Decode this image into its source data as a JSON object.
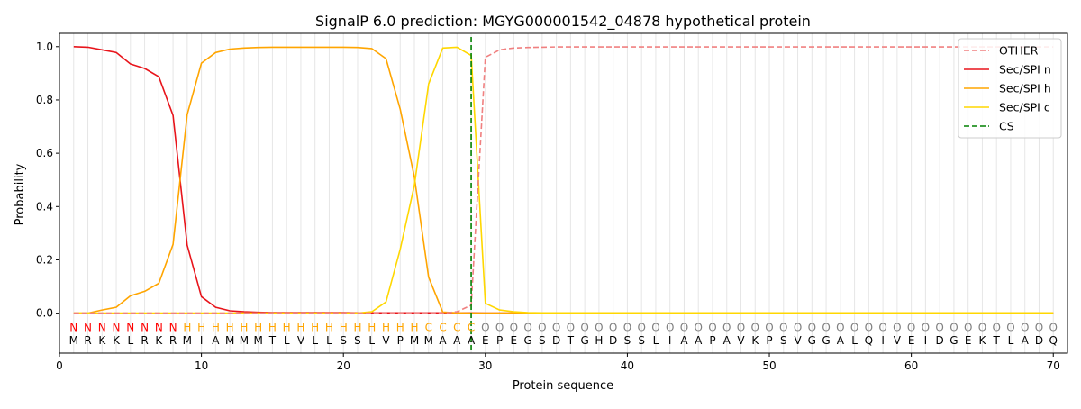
{
  "chart_data": {
    "type": "line",
    "title": "SignalP 6.0 prediction: MGYG000001542_04878 hypothetical protein",
    "xlabel": "Protein sequence",
    "ylabel": "Probability",
    "xlim": [
      0,
      71
    ],
    "ylim": [
      -0.15,
      1.05
    ],
    "x_ticks": [
      0,
      10,
      20,
      30,
      40,
      50,
      60,
      70
    ],
    "y_ticks": [
      0.0,
      0.2,
      0.4,
      0.6,
      0.8,
      1.0
    ],
    "x_tick_labels": [
      "0",
      "10",
      "20",
      "30",
      "40",
      "50",
      "60",
      "70"
    ],
    "y_tick_labels": [
      "0.0",
      "0.2",
      "0.4",
      "0.6",
      "0.8",
      "1.0"
    ],
    "grid": "vertical lines at every residue",
    "legend_position": "top-right",
    "sequence": [
      "M",
      "R",
      "K",
      "K",
      "L",
      "R",
      "K",
      "R",
      "M",
      "I",
      "A",
      "M",
      "M",
      "M",
      "T",
      "L",
      "V",
      "L",
      "L",
      "S",
      "S",
      "L",
      "V",
      "P",
      "M",
      "M",
      "A",
      "A",
      "A",
      "E",
      "P",
      "E",
      "G",
      "S",
      "D",
      "T",
      "G",
      "H",
      "D",
      "S",
      "S",
      "L",
      "I",
      "A",
      "A",
      "P",
      "A",
      "V",
      "K",
      "P",
      "S",
      "V",
      "G",
      "G",
      "A",
      "L",
      "Q",
      "I",
      "V",
      "E",
      "I",
      "D",
      "G",
      "E",
      "K",
      "T",
      "L",
      "A",
      "D",
      "Q"
    ],
    "labels": [
      "N",
      "N",
      "N",
      "N",
      "N",
      "N",
      "N",
      "N",
      "H",
      "H",
      "H",
      "H",
      "H",
      "H",
      "H",
      "H",
      "H",
      "H",
      "H",
      "H",
      "H",
      "H",
      "H",
      "H",
      "H",
      "C",
      "C",
      "C",
      "C",
      "O",
      "O",
      "O",
      "O",
      "O",
      "O",
      "O",
      "O",
      "O",
      "O",
      "O",
      "O",
      "O",
      "O",
      "O",
      "O",
      "O",
      "O",
      "O",
      "O",
      "O",
      "O",
      "O",
      "O",
      "O",
      "O",
      "O",
      "O",
      "O",
      "O",
      "O",
      "O",
      "O",
      "O",
      "O",
      "O",
      "O",
      "O",
      "O",
      "O",
      "O"
    ],
    "label_colors": {
      "N": "#ff0000",
      "H": "#ffa500",
      "C": "#ffa500",
      "O": "#808080"
    },
    "series": [
      {
        "name": "OTHER",
        "color": "#f08080",
        "dash": "dashed",
        "values": [
          0,
          0,
          0,
          0,
          0,
          0,
          0,
          0,
          0,
          0,
          0,
          0,
          0,
          0,
          0,
          0,
          0,
          0,
          0,
          0,
          0,
          0,
          0,
          0,
          0,
          0,
          0,
          0.005,
          0.03,
          0.96,
          0.988,
          0.995,
          0.997,
          0.998,
          0.999,
          0.999,
          0.999,
          0.999,
          0.999,
          0.999,
          0.999,
          0.999,
          0.999,
          0.999,
          0.999,
          0.999,
          0.999,
          0.999,
          0.999,
          0.999,
          0.999,
          0.999,
          0.999,
          0.999,
          0.999,
          0.999,
          0.999,
          0.999,
          0.999,
          0.999,
          0.999,
          0.999,
          0.999,
          0.999,
          0.999,
          0.999,
          0.999,
          0.999,
          0.999,
          0.999
        ]
      },
      {
        "name": "Sec/SPI n",
        "color": "#e8141b",
        "dash": "solid",
        "values": [
          1.0,
          0.998,
          0.988,
          0.978,
          0.935,
          0.918,
          0.887,
          0.742,
          0.255,
          0.062,
          0.022,
          0.009,
          0.005,
          0.003,
          0.002,
          0.002,
          0.002,
          0.002,
          0.002,
          0.002,
          0.001,
          0.001,
          0.001,
          0.001,
          0.001,
          0.001,
          0.001,
          0.001,
          0.001,
          0,
          0,
          0,
          0,
          0,
          0,
          0,
          0,
          0,
          0,
          0,
          0,
          0,
          0,
          0,
          0,
          0,
          0,
          0,
          0,
          0,
          0,
          0,
          0,
          0,
          0,
          0,
          0,
          0,
          0,
          0,
          0,
          0,
          0,
          0,
          0,
          0,
          0,
          0,
          0,
          0
        ]
      },
      {
        "name": "Sec/SPI h",
        "color": "#ffa500",
        "dash": "solid",
        "values": [
          0,
          0,
          0.012,
          0.022,
          0.065,
          0.082,
          0.112,
          0.258,
          0.745,
          0.938,
          0.978,
          0.991,
          0.995,
          0.997,
          0.998,
          0.998,
          0.998,
          0.998,
          0.998,
          0.998,
          0.997,
          0.993,
          0.955,
          0.765,
          0.51,
          0.135,
          0.004,
          0.001,
          0.0,
          0,
          0,
          0,
          0,
          0,
          0,
          0,
          0,
          0,
          0,
          0,
          0,
          0,
          0,
          0,
          0,
          0,
          0,
          0,
          0,
          0,
          0,
          0,
          0,
          0,
          0,
          0,
          0,
          0,
          0,
          0,
          0,
          0,
          0,
          0,
          0,
          0,
          0,
          0,
          0,
          0
        ]
      },
      {
        "name": "Sec/SPI c",
        "color": "#ffd700",
        "dash": "solid",
        "values": [
          0,
          0,
          0,
          0,
          0,
          0,
          0,
          0,
          0,
          0,
          0,
          0,
          0,
          0,
          0,
          0,
          0,
          0,
          0,
          0,
          0,
          0.005,
          0.042,
          0.24,
          0.48,
          0.86,
          0.995,
          0.998,
          0.967,
          0.037,
          0.012,
          0.005,
          0.002,
          0.001,
          0.001,
          0.001,
          0.001,
          0.001,
          0.001,
          0.001,
          0.001,
          0.001,
          0.001,
          0.001,
          0.001,
          0.001,
          0.001,
          0.001,
          0.001,
          0.001,
          0.001,
          0.001,
          0.001,
          0.001,
          0.001,
          0.001,
          0.001,
          0.001,
          0.001,
          0.001,
          0.001,
          0.001,
          0.001,
          0.001,
          0.001,
          0.001,
          0.001,
          0.001,
          0.001,
          0.001
        ]
      }
    ],
    "cs": {
      "name": "CS",
      "x": 29,
      "color": "#008000",
      "dash": "dashed"
    }
  }
}
